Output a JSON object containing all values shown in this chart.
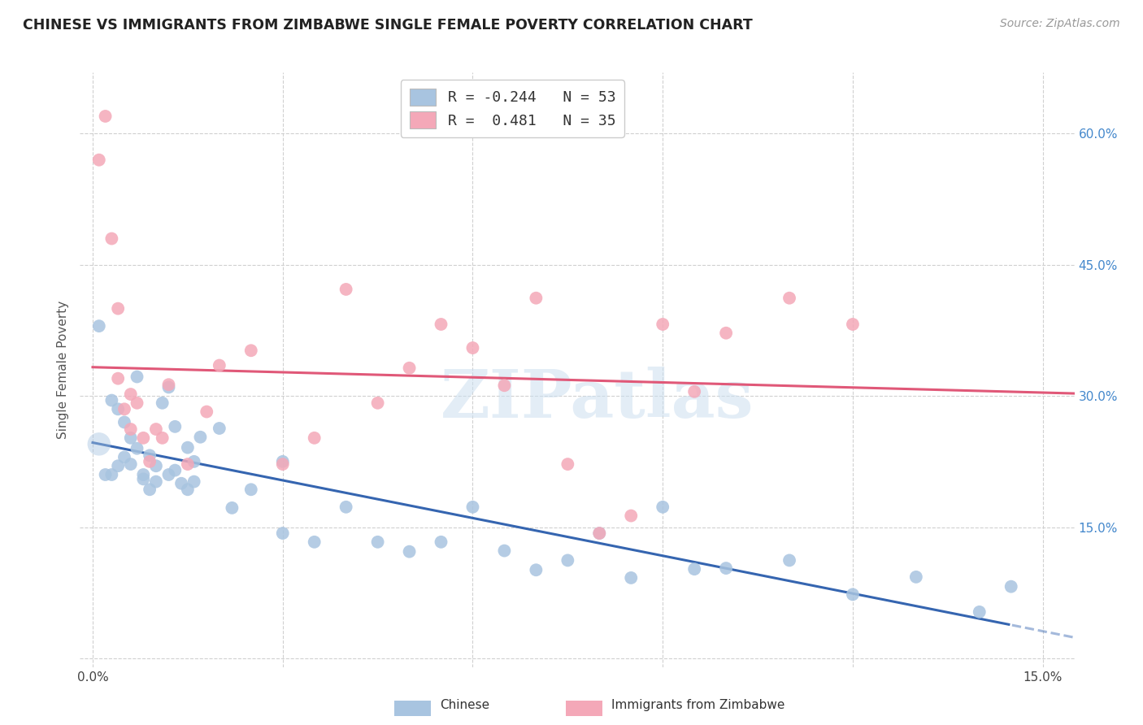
{
  "title": "CHINESE VS IMMIGRANTS FROM ZIMBABWE SINGLE FEMALE POVERTY CORRELATION CHART",
  "source": "Source: ZipAtlas.com",
  "ylabel": "Single Female Poverty",
  "y_ticks": [
    0.0,
    0.15,
    0.3,
    0.45,
    0.6
  ],
  "y_tick_labels": [
    "",
    "15.0%",
    "30.0%",
    "45.0%",
    "60.0%"
  ],
  "x_ticks": [
    0.0,
    0.03,
    0.06,
    0.09,
    0.12,
    0.15
  ],
  "x_tick_labels": [
    "0.0%",
    "",
    "",
    "",
    "",
    "15.0%"
  ],
  "xlim": [
    -0.002,
    0.155
  ],
  "ylim": [
    -0.01,
    0.67
  ],
  "watermark": "ZIPatlas",
  "legend_R1": "-0.244",
  "legend_N1": "53",
  "legend_R2": "0.481",
  "legend_N2": "35",
  "color_chinese": "#a8c4e0",
  "color_zimbabwe": "#f4a8b8",
  "color_line_chinese": "#3565b0",
  "color_line_zimbabwe": "#e05878",
  "color_axis_right": "#4488cc",
  "chinese_x": [
    0.001,
    0.002,
    0.003,
    0.003,
    0.004,
    0.004,
    0.005,
    0.005,
    0.006,
    0.006,
    0.007,
    0.007,
    0.008,
    0.008,
    0.009,
    0.009,
    0.01,
    0.01,
    0.011,
    0.012,
    0.012,
    0.013,
    0.013,
    0.014,
    0.015,
    0.015,
    0.016,
    0.016,
    0.017,
    0.02,
    0.022,
    0.025,
    0.03,
    0.03,
    0.035,
    0.04,
    0.045,
    0.05,
    0.055,
    0.06,
    0.065,
    0.07,
    0.075,
    0.08,
    0.085,
    0.09,
    0.095,
    0.1,
    0.11,
    0.12,
    0.13,
    0.14,
    0.145
  ],
  "chinese_y": [
    0.38,
    0.21,
    0.295,
    0.21,
    0.285,
    0.22,
    0.27,
    0.23,
    0.252,
    0.222,
    0.322,
    0.24,
    0.21,
    0.205,
    0.232,
    0.193,
    0.22,
    0.202,
    0.292,
    0.31,
    0.21,
    0.265,
    0.215,
    0.2,
    0.241,
    0.193,
    0.225,
    0.202,
    0.253,
    0.263,
    0.172,
    0.193,
    0.225,
    0.143,
    0.133,
    0.173,
    0.133,
    0.122,
    0.133,
    0.173,
    0.123,
    0.101,
    0.112,
    0.143,
    0.092,
    0.173,
    0.102,
    0.103,
    0.112,
    0.073,
    0.093,
    0.053,
    0.082
  ],
  "zimbabwe_x": [
    0.001,
    0.002,
    0.003,
    0.004,
    0.004,
    0.005,
    0.006,
    0.006,
    0.007,
    0.008,
    0.009,
    0.01,
    0.011,
    0.012,
    0.015,
    0.018,
    0.02,
    0.025,
    0.03,
    0.035,
    0.04,
    0.045,
    0.05,
    0.055,
    0.06,
    0.065,
    0.07,
    0.075,
    0.08,
    0.085,
    0.09,
    0.095,
    0.1,
    0.11,
    0.12
  ],
  "zimbabwe_y": [
    0.57,
    0.62,
    0.48,
    0.4,
    0.32,
    0.285,
    0.302,
    0.262,
    0.292,
    0.252,
    0.225,
    0.262,
    0.252,
    0.313,
    0.222,
    0.282,
    0.335,
    0.352,
    0.222,
    0.252,
    0.422,
    0.292,
    0.332,
    0.382,
    0.355,
    0.312,
    0.412,
    0.222,
    0.143,
    0.163,
    0.382,
    0.305,
    0.372,
    0.412,
    0.382
  ]
}
